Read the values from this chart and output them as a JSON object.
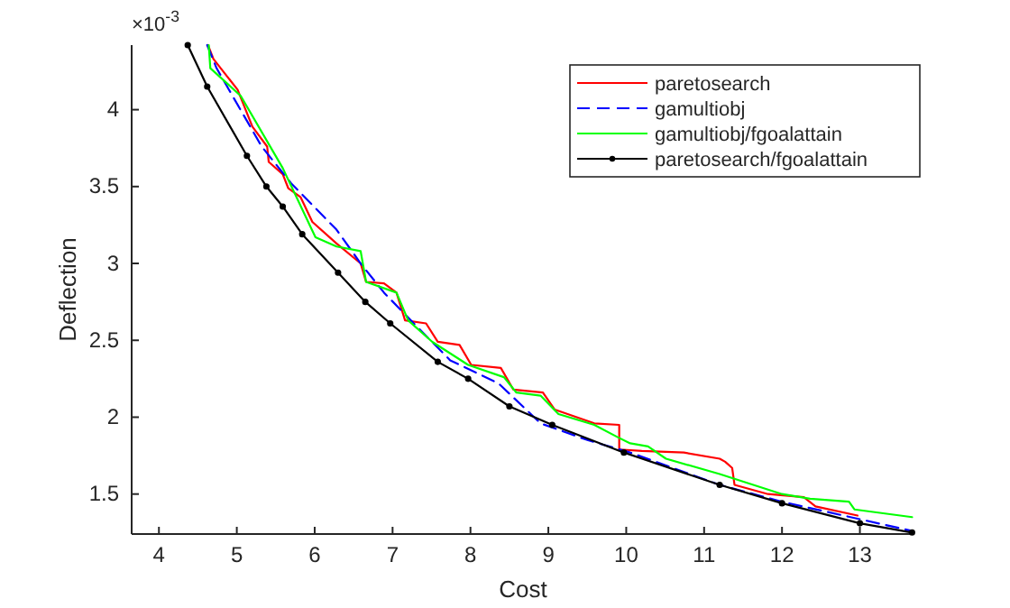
{
  "chart_data": {
    "type": "line",
    "xlabel": "Cost",
    "ylabel": "Deflection",
    "annotations": [
      "×10$^{-3}$"
    ],
    "xlim": [
      3.65,
      13.7
    ],
    "ylim": [
      1.24,
      4.42
    ],
    "xticks": [
      4,
      5,
      6,
      7,
      8,
      9,
      10,
      11,
      12,
      13
    ],
    "yticks": [
      1.5,
      2,
      2.5,
      3,
      3.5,
      4
    ],
    "grid": false,
    "legend": "top right",
    "series": [
      {
        "name": "paretosearch",
        "color": "#ff0000",
        "x": [
          4.63,
          4.7,
          5.01,
          5.2,
          5.39,
          5.41,
          5.59,
          5.66,
          5.82,
          5.97,
          6.28,
          6.59,
          6.66,
          6.89,
          7.05,
          7.16,
          7.43,
          7.58,
          7.86,
          8.01,
          8.39,
          8.55,
          8.93,
          9.08,
          9.59,
          9.91,
          9.91,
          10.2,
          10.74,
          11.2,
          11.27,
          11.36,
          11.39,
          11.82,
          12.28,
          12.43,
          12.97
        ],
        "values": [
          4.42,
          4.33,
          4.13,
          3.89,
          3.76,
          3.66,
          3.58,
          3.49,
          3.43,
          3.27,
          3.13,
          3.0,
          2.88,
          2.87,
          2.81,
          2.63,
          2.61,
          2.49,
          2.47,
          2.34,
          2.32,
          2.18,
          2.16,
          2.05,
          1.96,
          1.95,
          1.79,
          1.78,
          1.77,
          1.73,
          1.71,
          1.67,
          1.56,
          1.5,
          1.48,
          1.42,
          1.36
        ]
      },
      {
        "name": "gamultiobj",
        "color": "#0000ff",
        "line_style": "dashed",
        "x": [
          4.62,
          4.74,
          5.32,
          5.7,
          6.28,
          6.59,
          6.89,
          7.35,
          7.74,
          8.36,
          8.9,
          9.51,
          10.05,
          11.2,
          12.0,
          13.67
        ],
        "values": [
          4.42,
          4.27,
          3.76,
          3.52,
          3.22,
          3.0,
          2.81,
          2.57,
          2.37,
          2.22,
          1.96,
          1.85,
          1.77,
          1.56,
          1.45,
          1.26
        ]
      },
      {
        "name": "gamultiobj/fgoalattain",
        "color": "#00ff00",
        "x": [
          4.64,
          4.66,
          5.05,
          5.59,
          6.01,
          6.28,
          6.59,
          6.66,
          7.05,
          7.2,
          7.51,
          7.97,
          8.43,
          8.59,
          8.9,
          9.13,
          9.59,
          9.89,
          10.05,
          10.28,
          10.51,
          11.2,
          12.0,
          12.36,
          12.86,
          12.93,
          13.67
        ],
        "values": [
          4.42,
          4.27,
          4.09,
          3.62,
          3.17,
          3.11,
          3.08,
          2.88,
          2.81,
          2.63,
          2.49,
          2.34,
          2.26,
          2.16,
          2.14,
          2.02,
          1.95,
          1.87,
          1.83,
          1.81,
          1.73,
          1.63,
          1.5,
          1.47,
          1.45,
          1.4,
          1.35
        ]
      },
      {
        "name": "paretosearch/fgoalattain",
        "color": "#000000",
        "marker": "circle",
        "x": [
          4.37,
          4.62,
          5.13,
          5.38,
          5.59,
          5.84,
          6.3,
          6.65,
          6.97,
          7.58,
          7.97,
          8.5,
          9.05,
          9.97,
          11.2,
          12.0,
          13.0,
          13.67
        ],
        "values": [
          4.42,
          4.15,
          3.7,
          3.5,
          3.37,
          3.19,
          2.94,
          2.75,
          2.61,
          2.36,
          2.25,
          2.07,
          1.95,
          1.77,
          1.56,
          1.44,
          1.31,
          1.25
        ]
      }
    ]
  }
}
